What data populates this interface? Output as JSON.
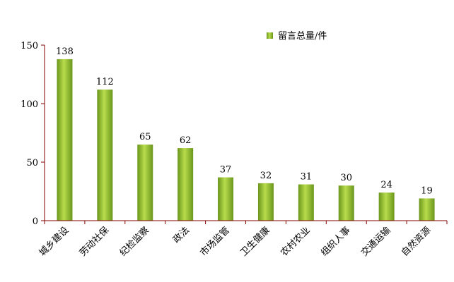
{
  "chart_data": {
    "type": "bar",
    "title": "",
    "xlabel": "",
    "ylabel": "",
    "categories": [
      "城乡建设",
      "劳动社保",
      "纪检监察",
      "政法",
      "市场监管",
      "卫生健康",
      "农村农业",
      "组织人事",
      "交通运输",
      "自然资源"
    ],
    "series": [
      {
        "name": "留言总量/件",
        "values": [
          138,
          112,
          65,
          62,
          37,
          32,
          31,
          30,
          24,
          19
        ]
      }
    ],
    "ylim": [
      0,
      150
    ],
    "yticks": [
      0,
      50,
      100,
      150
    ],
    "grid": false,
    "legend": "top-right",
    "data_labels": true,
    "colors": {
      "bar_light": "#b8dc4c",
      "bar_dark": "#6a961c",
      "axis": "#800000"
    }
  }
}
